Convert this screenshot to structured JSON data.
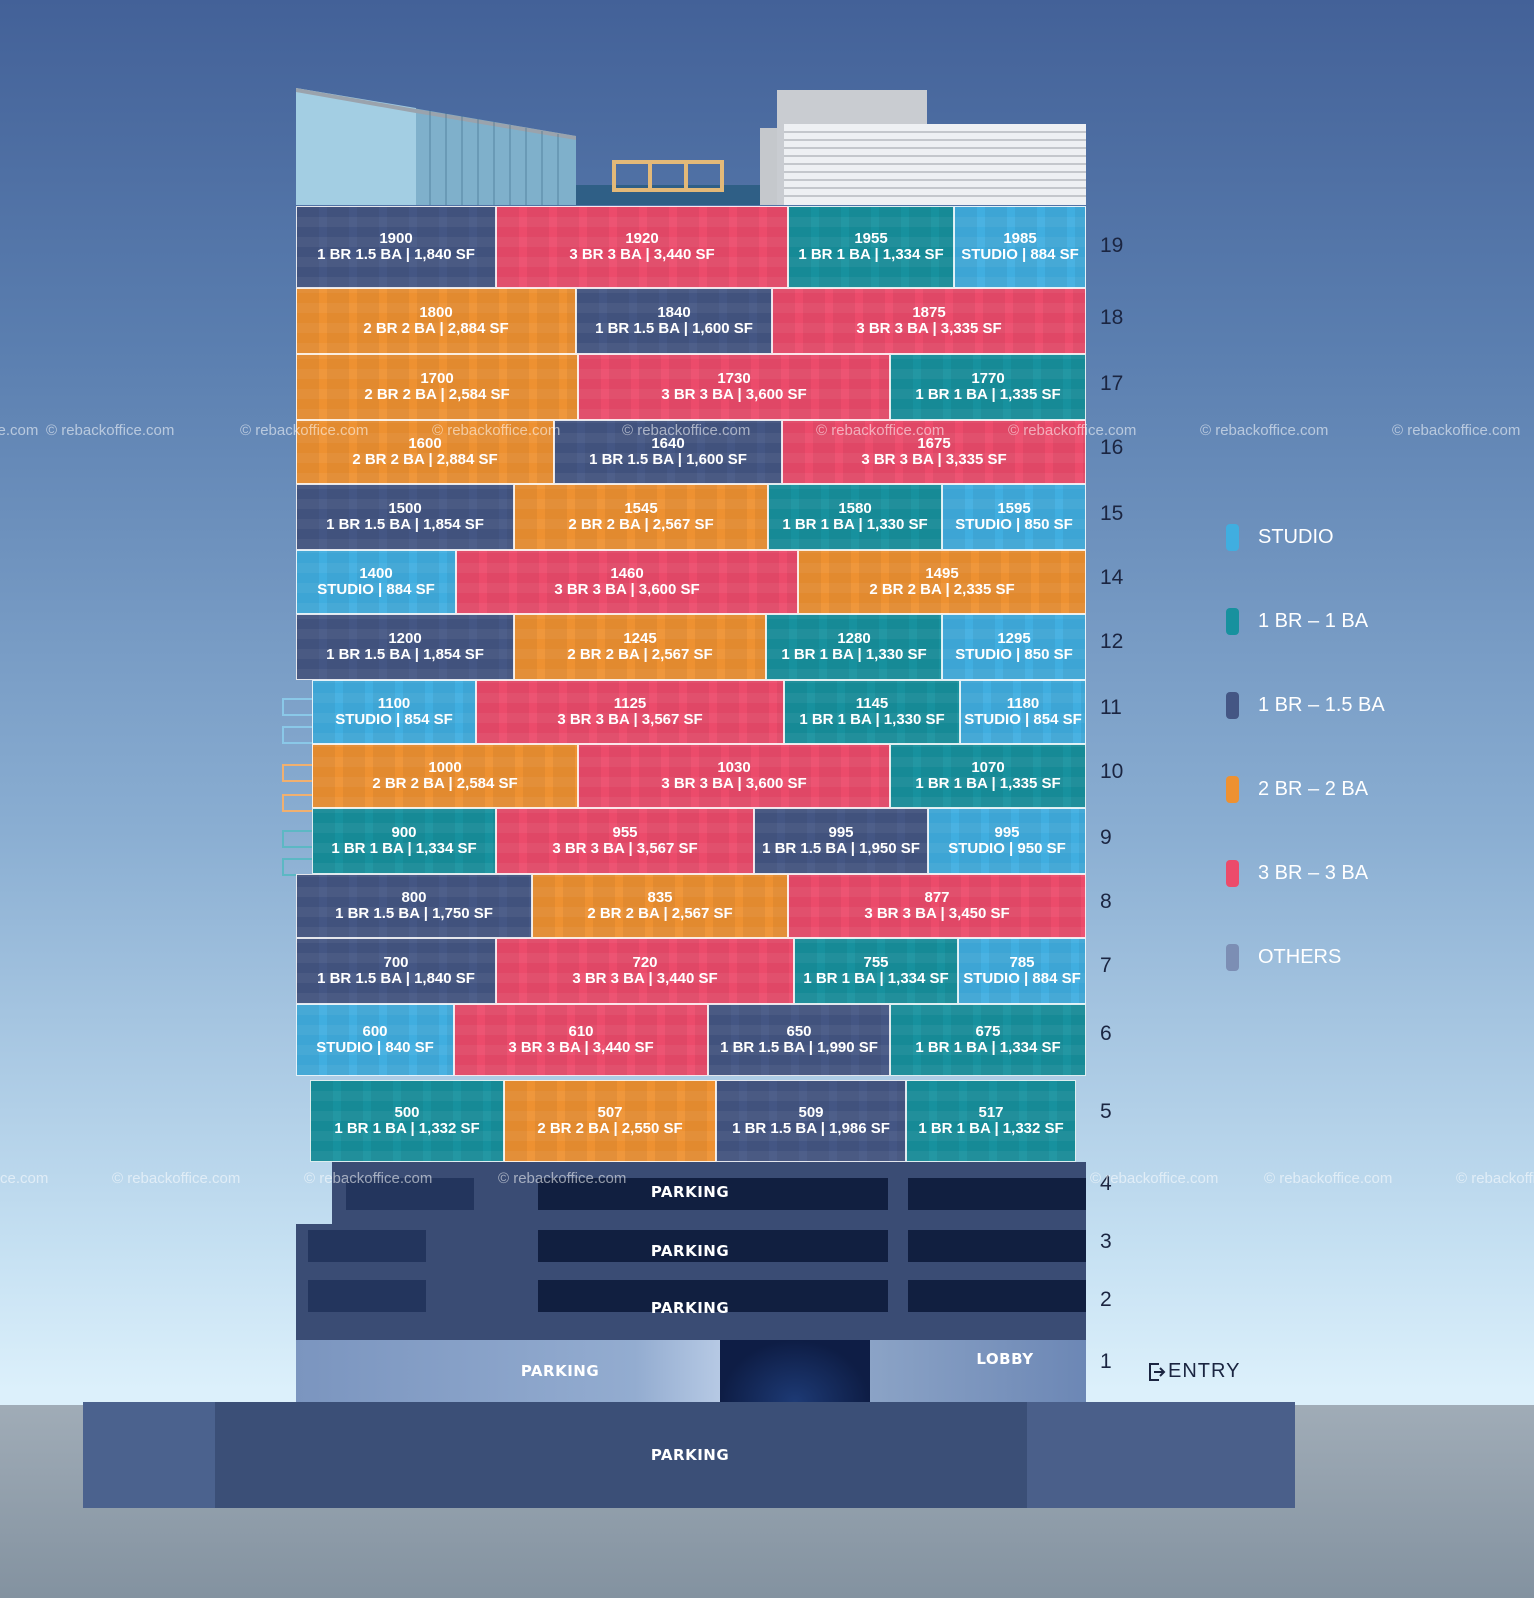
{
  "units": [
    {
      "floor": "19",
      "num": "1900",
      "detail": "1 BR 1.5 BA | 1,840 SF",
      "type": "onehalf"
    },
    {
      "floor": "19",
      "num": "1920",
      "detail": "3 BR 3 BA | 3,440 SF",
      "type": "three"
    },
    {
      "floor": "19",
      "num": "1955",
      "detail": "1 BR 1 BA | 1,334 SF",
      "type": "one"
    },
    {
      "floor": "19",
      "num": "1985",
      "detail": "STUDIO | 884 SF",
      "type": "studio"
    },
    {
      "floor": "18",
      "num": "1800",
      "detail": "2 BR 2 BA | 2,884 SF",
      "type": "two"
    },
    {
      "floor": "18",
      "num": "1840",
      "detail": "1 BR 1.5 BA | 1,600 SF",
      "type": "onehalf"
    },
    {
      "floor": "18",
      "num": "1875",
      "detail": "3 BR 3 BA | 3,335 SF",
      "type": "three"
    },
    {
      "floor": "17",
      "num": "1700",
      "detail": "2 BR 2 BA | 2,584 SF",
      "type": "two"
    },
    {
      "floor": "17",
      "num": "1730",
      "detail": "3 BR 3 BA | 3,600 SF",
      "type": "three"
    },
    {
      "floor": "17",
      "num": "1770",
      "detail": "1 BR 1 BA | 1,335 SF",
      "type": "one"
    },
    {
      "floor": "16",
      "num": "1600",
      "detail": "2 BR 2 BA | 2,884 SF",
      "type": "two"
    },
    {
      "floor": "16",
      "num": "1640",
      "detail": "1 BR 1.5 BA | 1,600 SF",
      "type": "onehalf"
    },
    {
      "floor": "16",
      "num": "1675",
      "detail": "3 BR 3 BA | 3,335 SF",
      "type": "three"
    },
    {
      "floor": "15",
      "num": "1500",
      "detail": "1 BR 1.5 BA | 1,854 SF",
      "type": "onehalf"
    },
    {
      "floor": "15",
      "num": "1545",
      "detail": "2 BR 2 BA | 2,567 SF",
      "type": "two"
    },
    {
      "floor": "15",
      "num": "1580",
      "detail": "1 BR 1 BA | 1,330 SF",
      "type": "one"
    },
    {
      "floor": "15",
      "num": "1595",
      "detail": "STUDIO | 850 SF",
      "type": "studio"
    },
    {
      "floor": "14",
      "num": "1400",
      "detail": "STUDIO | 884 SF",
      "type": "studio"
    },
    {
      "floor": "14",
      "num": "1460",
      "detail": "3 BR 3 BA | 3,600 SF",
      "type": "three"
    },
    {
      "floor": "14",
      "num": "1495",
      "detail": "2 BR 2 BA | 2,335 SF",
      "type": "two"
    },
    {
      "floor": "12",
      "num": "1200",
      "detail": "1 BR 1.5 BA | 1,854 SF",
      "type": "onehalf"
    },
    {
      "floor": "12",
      "num": "1245",
      "detail": "2 BR 2 BA | 2,567 SF",
      "type": "two"
    },
    {
      "floor": "12",
      "num": "1280",
      "detail": "1 BR 1 BA | 1,330 SF",
      "type": "one"
    },
    {
      "floor": "12",
      "num": "1295",
      "detail": "STUDIO | 850 SF",
      "type": "studio"
    },
    {
      "floor": "11",
      "num": "1100",
      "detail": "STUDIO | 854 SF",
      "type": "studio"
    },
    {
      "floor": "11",
      "num": "1125",
      "detail": "3 BR 3 BA | 3,567 SF",
      "type": "three"
    },
    {
      "floor": "11",
      "num": "1145",
      "detail": "1 BR 1 BA | 1,330 SF",
      "type": "one"
    },
    {
      "floor": "11",
      "num": "1180",
      "detail": "STUDIO | 854 SF",
      "type": "studio"
    },
    {
      "floor": "10",
      "num": "1000",
      "detail": "2 BR 2 BA | 2,584 SF",
      "type": "two"
    },
    {
      "floor": "10",
      "num": "1030",
      "detail": "3 BR 3 BA | 3,600 SF",
      "type": "three"
    },
    {
      "floor": "10",
      "num": "1070",
      "detail": "1 BR 1 BA | 1,335 SF",
      "type": "one"
    },
    {
      "floor": "9",
      "num": "900",
      "detail": "1 BR 1 BA | 1,334 SF",
      "type": "one"
    },
    {
      "floor": "9",
      "num": "955",
      "detail": "3 BR 3 BA | 3,567 SF",
      "type": "three"
    },
    {
      "floor": "9",
      "num": "995",
      "detail": "1 BR 1.5 BA | 1,950 SF",
      "type": "onehalf"
    },
    {
      "floor": "9",
      "num": "995",
      "detail": "STUDIO | 950 SF",
      "type": "studio"
    },
    {
      "floor": "8",
      "num": "800",
      "detail": "1 BR 1.5 BA | 1,750 SF",
      "type": "onehalf"
    },
    {
      "floor": "8",
      "num": "835",
      "detail": "2 BR 2 BA | 2,567 SF",
      "type": "two"
    },
    {
      "floor": "8",
      "num": "877",
      "detail": "3 BR 3 BA | 3,450 SF",
      "type": "three"
    },
    {
      "floor": "7",
      "num": "700",
      "detail": "1 BR 1.5 BA | 1,840 SF",
      "type": "onehalf"
    },
    {
      "floor": "7",
      "num": "720",
      "detail": "3 BR 3 BA | 3,440 SF",
      "type": "three"
    },
    {
      "floor": "7",
      "num": "755",
      "detail": "1 BR 1 BA | 1,334 SF",
      "type": "one"
    },
    {
      "floor": "7",
      "num": "785",
      "detail": "STUDIO | 884 SF",
      "type": "studio"
    },
    {
      "floor": "6",
      "num": "600",
      "detail": "STUDIO | 840 SF",
      "type": "studio"
    },
    {
      "floor": "6",
      "num": "610",
      "detail": "3 BR 3 BA | 3,440 SF",
      "type": "three"
    },
    {
      "floor": "6",
      "num": "650",
      "detail": "1 BR 1.5 BA | 1,990 SF",
      "type": "onehalf"
    },
    {
      "floor": "6",
      "num": "675",
      "detail": "1 BR 1 BA | 1,334 SF",
      "type": "one"
    },
    {
      "floor": "5",
      "num": "500",
      "detail": "1 BR 1 BA | 1,332 SF",
      "type": "one"
    },
    {
      "floor": "5",
      "num": "507",
      "detail": "2 BR 2 BA | 2,550 SF",
      "type": "two"
    },
    {
      "floor": "5",
      "num": "509",
      "detail": "1 BR 1.5 BA | 1,986 SF",
      "type": "onehalf"
    },
    {
      "floor": "5",
      "num": "517",
      "detail": "1 BR 1 BA | 1,332 SF",
      "type": "one"
    }
  ],
  "floors": [
    "19",
    "18",
    "17",
    "16",
    "15",
    "14",
    "12",
    "11",
    "10",
    "9",
    "8",
    "7",
    "6",
    "5",
    "4",
    "3",
    "2",
    "1"
  ],
  "lower_levels": {
    "parking4": "PARKING",
    "parking3": "PARKING",
    "parking2": "PARKING",
    "parking1": "PARKING",
    "lobby": "LOBBY",
    "entry": "ENTRY",
    "basement": "PARKING"
  },
  "legend": [
    {
      "label": "STUDIO",
      "color": "#40aee0"
    },
    {
      "label": "1 BR  –  1 BA",
      "color": "#17919e"
    },
    {
      "label": "1 BR  –  1.5 BA",
      "color": "#445684"
    },
    {
      "label": "2 BR  –  2 BA",
      "color": "#ee9131"
    },
    {
      "label": "3 BR  –  3 BA",
      "color": "#ec4b6b"
    },
    {
      "label": "OTHERS",
      "color": "#7c8eb4"
    }
  ],
  "watermark": "© rebackoffice.com",
  "colors": {
    "studio": "#40aee0",
    "one": "#17919e",
    "onehalf": "#445684",
    "two": "#ee9131",
    "three": "#ec4b6b"
  }
}
